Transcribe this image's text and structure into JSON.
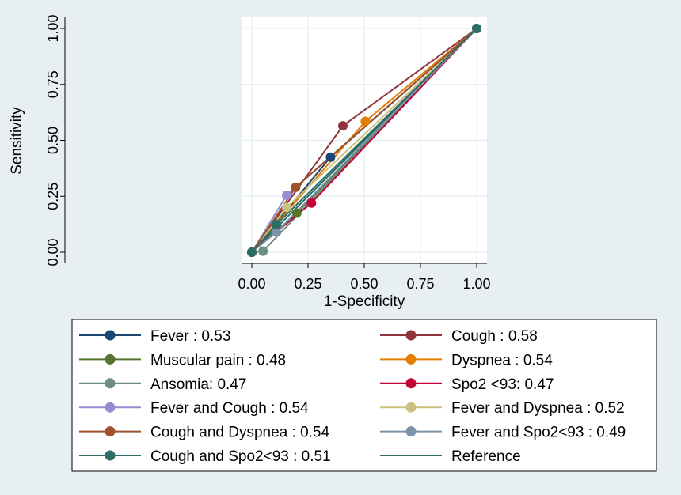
{
  "chart_data": {
    "type": "line",
    "xlabel": "1-Specificity",
    "ylabel": "Sensitivity",
    "xlim": [
      0,
      1
    ],
    "ylim": [
      0,
      1
    ],
    "xticks": [
      "0.00",
      "0.25",
      "0.50",
      "0.75",
      "1.00"
    ],
    "yticks": [
      "0.00",
      "0.25",
      "0.50",
      "0.75",
      "1.00"
    ],
    "grid": true,
    "legend_position": "bottom",
    "series": [
      {
        "name": "Fever : 0.53",
        "color": "#1a476f",
        "x": [
          0,
          0.35,
          1
        ],
        "y": [
          0,
          0.425,
          1
        ]
      },
      {
        "name": "Cough : 0.58",
        "color": "#90353b",
        "x": [
          0,
          0.405,
          1
        ],
        "y": [
          0,
          0.565,
          1
        ]
      },
      {
        "name": "Muscular pain : 0.48",
        "color": "#55752f",
        "x": [
          0,
          0.2,
          1
        ],
        "y": [
          0,
          0.175,
          1
        ]
      },
      {
        "name": "Dyspnea : 0.54",
        "color": "#e37e00",
        "x": [
          0,
          0.505,
          1
        ],
        "y": [
          0,
          0.585,
          1
        ]
      },
      {
        "name": "Ansomia: 0.47",
        "color": "#6e8e84",
        "x": [
          0,
          0.05,
          1
        ],
        "y": [
          0,
          0.005,
          1
        ]
      },
      {
        "name": "Spo2 <93: 0.47",
        "color": "#c10534",
        "x": [
          0,
          0.265,
          1
        ],
        "y": [
          0,
          0.22,
          1
        ]
      },
      {
        "name": "Fever and Cough : 0.54",
        "color": "#938dd2",
        "x": [
          0,
          0.155,
          1
        ],
        "y": [
          0,
          0.255,
          1
        ]
      },
      {
        "name": "Fever and Dyspnea : 0.52",
        "color": "#cac27e",
        "x": [
          0,
          0.155,
          1
        ],
        "y": [
          0,
          0.2,
          1
        ]
      },
      {
        "name": "Cough and Dyspnea : 0.54",
        "color": "#a0522d",
        "x": [
          0,
          0.195,
          1
        ],
        "y": [
          0,
          0.29,
          1
        ]
      },
      {
        "name": "Fever and Spo2<93 : 0.49",
        "color": "#7b92a8",
        "x": [
          0,
          0.11,
          1
        ],
        "y": [
          0,
          0.09,
          1
        ]
      },
      {
        "name": "Cough and Spo2<93 : 0.51",
        "color": "#2d6d66",
        "x": [
          0,
          0.11,
          1
        ],
        "y": [
          0,
          0.125,
          1
        ]
      },
      {
        "name": "Reference",
        "color": "#2d6d66",
        "x": [
          0,
          1
        ],
        "y": [
          0,
          1
        ],
        "reference": true
      }
    ]
  }
}
